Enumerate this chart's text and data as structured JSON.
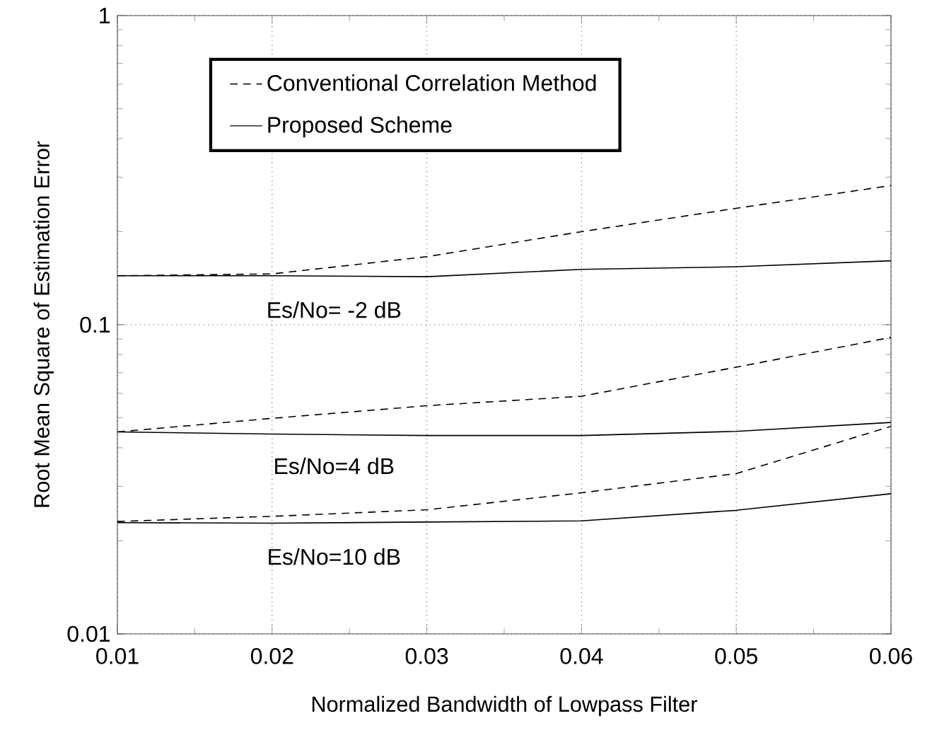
{
  "chart_data": {
    "type": "line",
    "xlabel": "Normalized Bandwidth of Lowpass Filter",
    "ylabel": "Root Mean Square of Estimation Error",
    "x": [
      0.01,
      0.02,
      0.03,
      0.04,
      0.05,
      0.06
    ],
    "series": [
      {
        "name": "Conventional Correlation Method",
        "color": "#000000",
        "line_style": "dashed",
        "values": [
          0.144,
          0.146,
          0.166,
          0.2,
          0.238,
          0.282
        ]
      },
      {
        "name": "Proposed Scheme",
        "color": "#000000",
        "line_style": "solid",
        "values": [
          0.144,
          0.144,
          0.143,
          0.151,
          0.154,
          0.161
        ]
      },
      {
        "color": "#000000",
        "line_style": "dashed",
        "values": [
          0.045,
          0.0498,
          0.0547,
          0.0587,
          0.0729,
          0.091
        ]
      },
      {
        "color": "#000000",
        "line_style": "solid",
        "values": [
          0.045,
          0.0443,
          0.0438,
          0.0438,
          0.0452,
          0.0483
        ]
      },
      {
        "color": "#000000",
        "line_style": "dashed",
        "values": [
          0.0231,
          0.024,
          0.0252,
          0.0286,
          0.033,
          0.0469
        ]
      },
      {
        "color": "#000000",
        "line_style": "solid",
        "values": [
          0.0229,
          0.0228,
          0.023,
          0.0232,
          0.0251,
          0.0284
        ]
      }
    ],
    "annotations": [
      "Es/No= -2 dB",
      "Es/No=4 dB",
      "Es/No=10 dB"
    ],
    "xlim": [
      0.01,
      0.06
    ],
    "ylim": [
      0.01,
      1
    ],
    "xticks": [
      0.01,
      0.02,
      0.03,
      0.04,
      0.05,
      0.06
    ],
    "yticks": [
      0.01,
      0.1,
      1
    ],
    "log": "y",
    "grid": true,
    "legend": "top left",
    "marker": "none"
  }
}
